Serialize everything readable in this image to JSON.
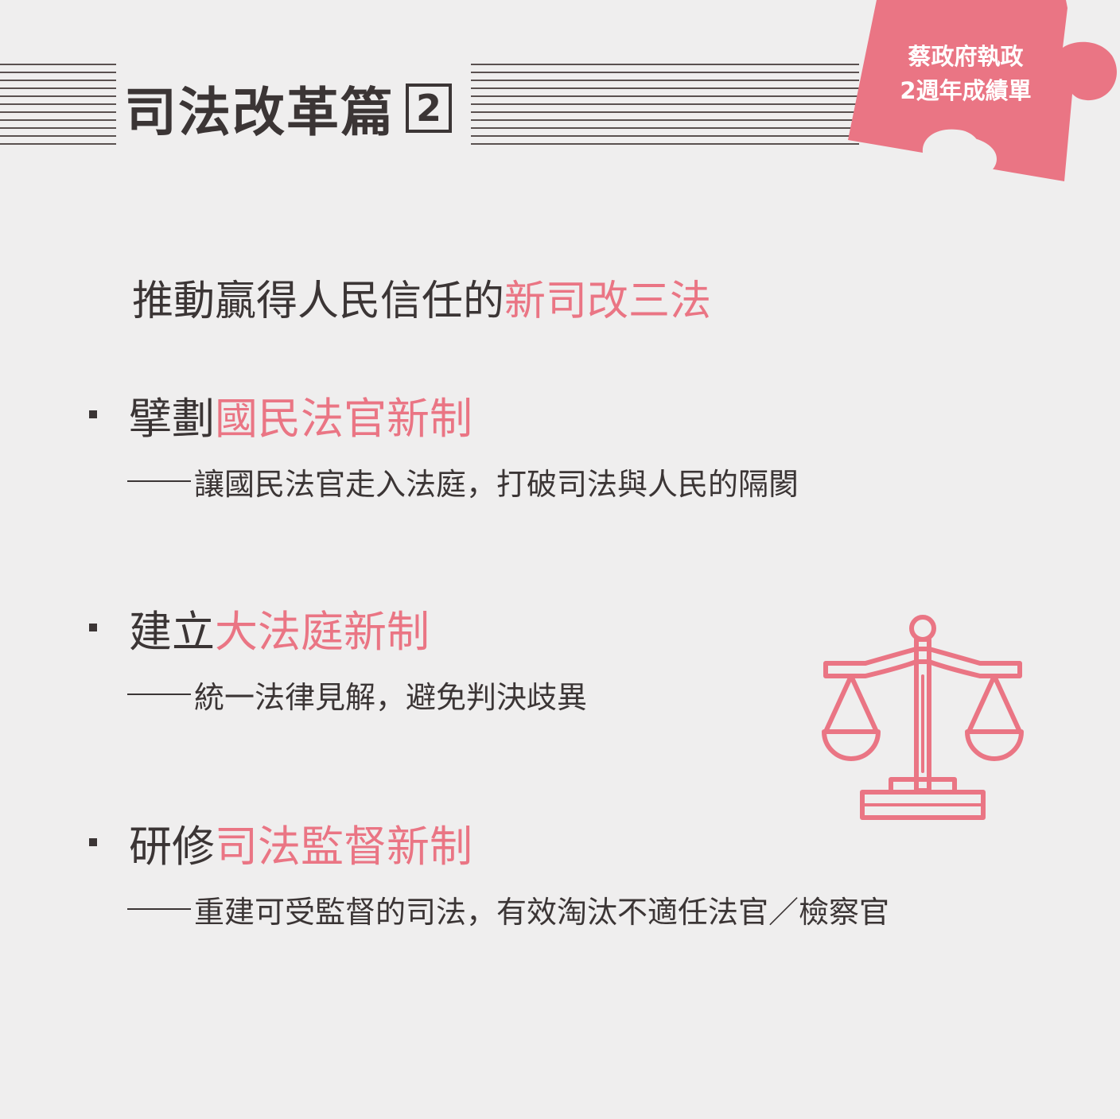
{
  "header": {
    "title": "司法改革篇",
    "number": "2"
  },
  "badge": {
    "line1": "蔡政府執政",
    "line2": "2週年成績單"
  },
  "intro": {
    "prefix": "推動贏得人民信任的",
    "highlight": "新司改三法"
  },
  "items": [
    {
      "verb": "擘劃",
      "highlight": "國民法官新制",
      "description": "讓國民法官走入法庭，打破司法與人民的隔閡"
    },
    {
      "verb": "建立",
      "highlight": "大法庭新制",
      "description": "統一法律見解，避免判決歧異"
    },
    {
      "verb": "研修",
      "highlight": "司法監督新制",
      "description": "重建可受監督的司法，有效淘汰不適任法官／檢察官"
    }
  ],
  "icons": {
    "scale": "scales-of-justice-icon",
    "puzzle": "puzzle-piece-icon"
  },
  "colors": {
    "accent": "#ea7584",
    "text": "#3b3535",
    "background": "#efeeee"
  }
}
